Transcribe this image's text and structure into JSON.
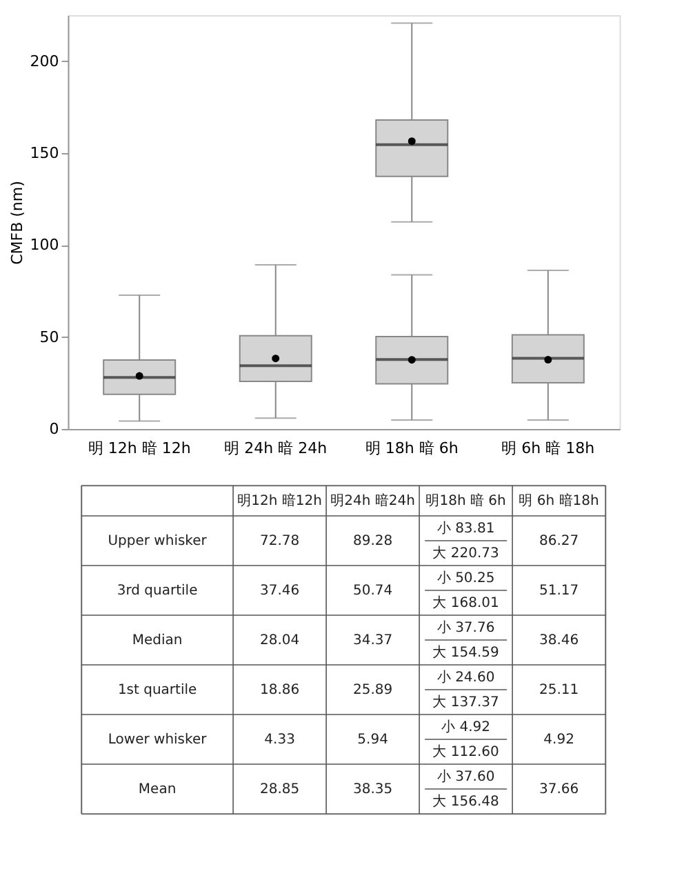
{
  "chart_data": {
    "type": "box",
    "ylabel": "CMFB (nm)",
    "categories": [
      "明 12h 暗 12h",
      "明 24h 暗 24h",
      "明 18h 暗 6h",
      "明 6h 暗 18h"
    ],
    "ylim": [
      0,
      225
    ],
    "yticks": [
      0,
      50,
      100,
      150,
      200
    ],
    "grid": false,
    "series": [
      {
        "color": "#d4d4d4",
        "boxes": [
          {
            "low": 4.33,
            "q1": 18.86,
            "median": 28.04,
            "q3": 37.46,
            "high": 72.78,
            "mean": 28.85
          },
          {
            "low": 5.94,
            "q1": 25.89,
            "median": 34.37,
            "q3": 50.74,
            "high": 89.28,
            "mean": 38.35
          },
          {
            "low": 4.92,
            "q1": 24.6,
            "median": 37.76,
            "q3": 50.25,
            "high": 83.81,
            "mean": 37.6
          },
          {
            "low": 4.92,
            "q1": 25.11,
            "median": 38.46,
            "q3": 51.17,
            "high": 86.27,
            "mean": 37.66
          }
        ]
      },
      {
        "color": "#d4d4d4",
        "boxes": [
          null,
          null,
          {
            "low": 112.6,
            "q1": 137.37,
            "median": 154.59,
            "q3": 168.01,
            "high": 220.73,
            "mean": 156.48
          },
          null
        ]
      }
    ],
    "annotations": [
      "明12h 暗12h",
      "明24h 暗24h",
      "明18h 暗 6h",
      "明 6h 暗18h",
      "Upper whisker",
      "72.78",
      "89.28",
      "小 83.81",
      "大 220.73",
      "86.27",
      "3rd quartile",
      "37.46",
      "50.74",
      "小 50.25",
      "大 168.01",
      "51.17",
      "Median",
      "28.04",
      "34.37",
      "小 37.76",
      "大 154.59",
      "38.46",
      "1st quartile",
      "18.86",
      "25.89",
      "小 24.60",
      "大 137.37",
      "25.11",
      "Lower whisker",
      "4.33",
      "5.94",
      "小 4.92",
      "大 112.60",
      "4.92",
      "Mean",
      "28.85",
      "38.35",
      "小 37.60",
      "大 156.48",
      "37.66"
    ]
  }
}
